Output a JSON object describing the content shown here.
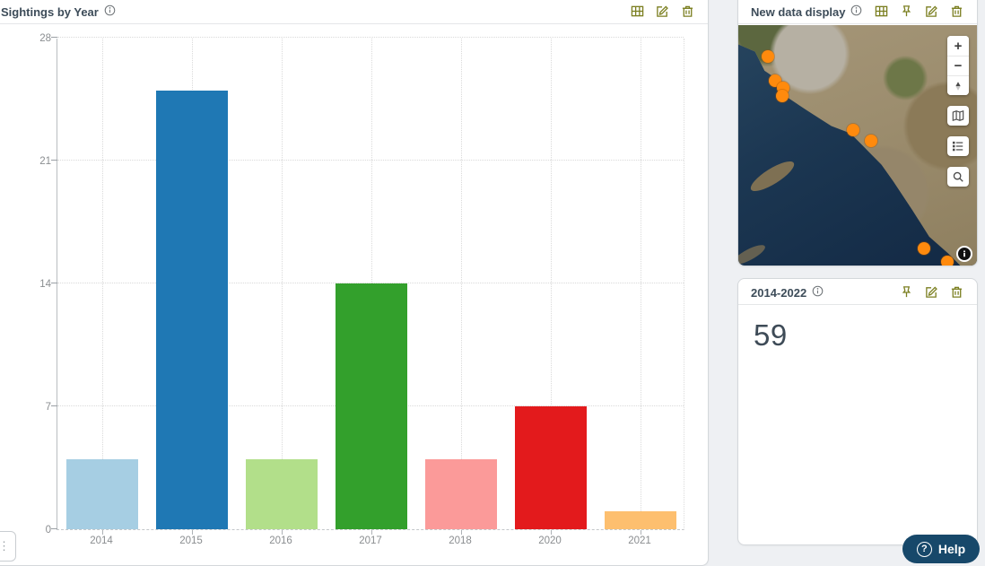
{
  "colors": {
    "icon_accent": "#7b7f20",
    "help_bg": "#17486a",
    "map_dot": "#ff8a0d",
    "title_text": "#3d4c59",
    "axis_text": "#8a8d90"
  },
  "chart_panel": {
    "title": "Sightings by Year",
    "toolbar_icons": [
      "table-icon",
      "edit-icon",
      "trash-icon"
    ]
  },
  "chart_data": {
    "type": "bar",
    "title": "Sightings by Year",
    "categories": [
      "2014",
      "2015",
      "2016",
      "2017",
      "2018",
      "2020",
      "2021"
    ],
    "values": [
      4,
      25,
      4,
      14,
      4,
      7,
      1
    ],
    "bar_colors": [
      "#a6cee3",
      "#1f78b4",
      "#b2df8a",
      "#33a02c",
      "#fb9a99",
      "#e31a1c",
      "#fdbf6f"
    ],
    "xlabel": "",
    "ylabel": "",
    "yticks": [
      0,
      7,
      14,
      21,
      28
    ],
    "ylim": [
      0,
      28
    ],
    "grid": "dotted",
    "legend": "none",
    "total": 59
  },
  "map_panel": {
    "title": "New data display",
    "toolbar_icons": [
      "table-icon",
      "pin-icon",
      "edit-icon",
      "trash-icon"
    ],
    "controls": {
      "zoom_in_label": "+",
      "zoom_out_label": "−",
      "icons": [
        "compass-icon",
        "basemap-icon",
        "legend-icon",
        "search-icon",
        "info-icon"
      ]
    },
    "points_pct": [
      {
        "x": 12.3,
        "y": 13.0
      },
      {
        "x": 15.3,
        "y": 23.0
      },
      {
        "x": 18.7,
        "y": 26.0
      },
      {
        "x": 18.3,
        "y": 29.4
      },
      {
        "x": 48.1,
        "y": 43.5
      },
      {
        "x": 55.6,
        "y": 48.0
      },
      {
        "x": 78.0,
        "y": 93.0
      },
      {
        "x": 87.7,
        "y": 98.5
      }
    ]
  },
  "kpi_panel": {
    "title": "2014-2022",
    "value": "59",
    "toolbar_icons": [
      "pin-icon",
      "edit-icon",
      "trash-icon"
    ]
  },
  "help": {
    "label": "Help",
    "icon_glyph": "?"
  },
  "corner_widget": {
    "glyph": "⋮"
  }
}
